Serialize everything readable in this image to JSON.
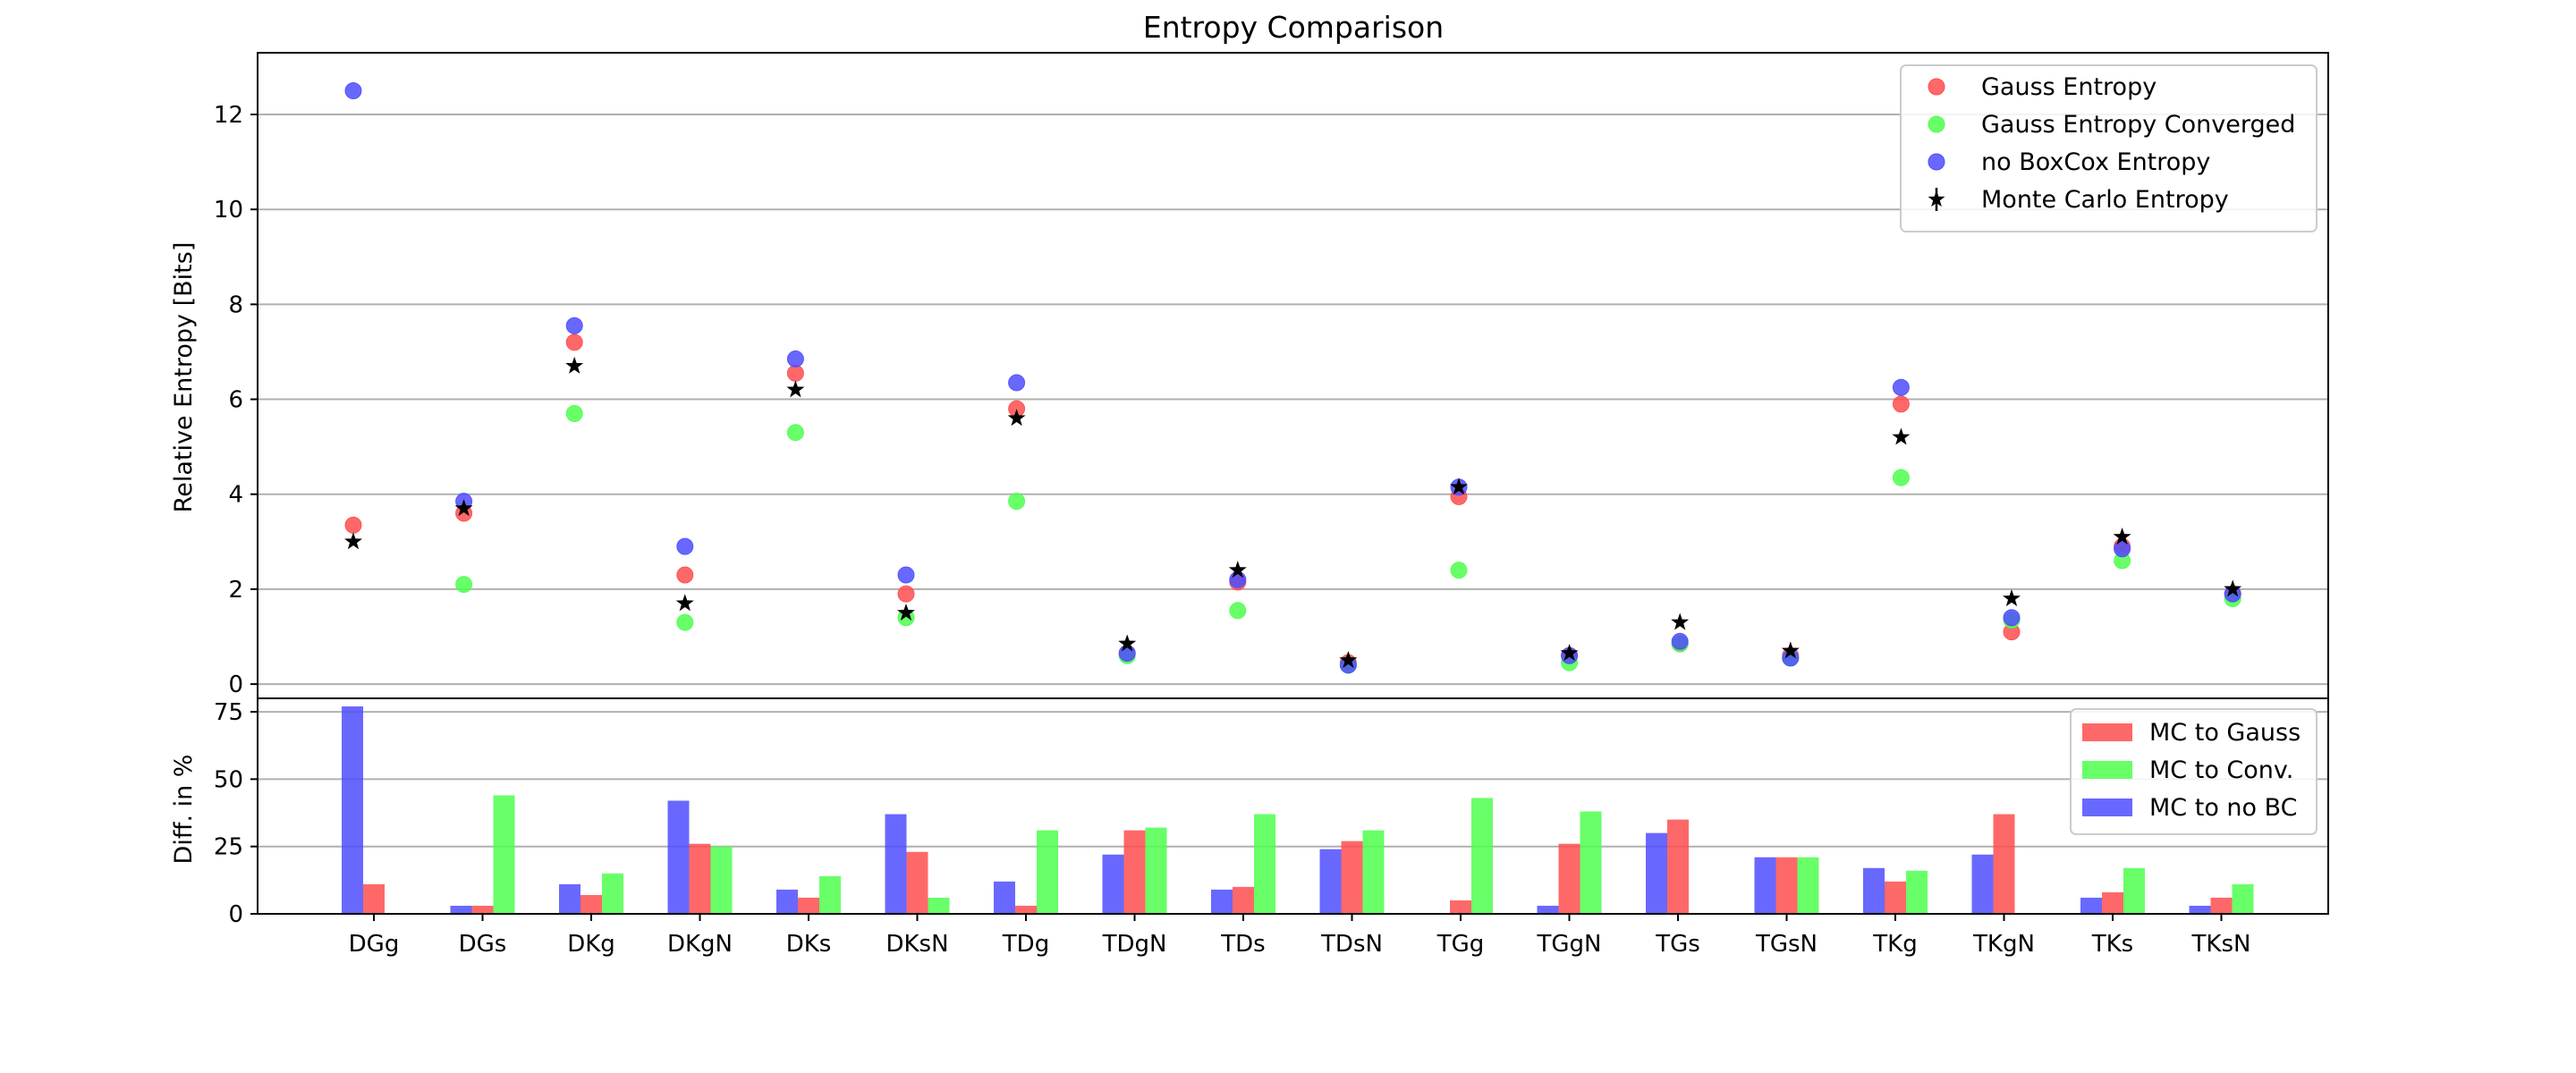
{
  "chart_data": [
    {
      "type": "scatter",
      "title": "Entropy Comparison",
      "xlabel": "",
      "ylabel": "Relative Entropy [Bits]",
      "ylim": [
        -0.3,
        13.3
      ],
      "yticks": [
        0,
        2,
        4,
        6,
        8,
        10,
        12
      ],
      "grid": "horizontal",
      "legend_position": "top-right",
      "categories": [
        "DGg",
        "DGs",
        "DKg",
        "DKgN",
        "DKs",
        "DKsN",
        "TDg",
        "TDgN",
        "TDs",
        "TDsN",
        "TGg",
        "TGgN",
        "TGs",
        "TGsN",
        "TKg",
        "TKgN",
        "TKs",
        "TKsN"
      ],
      "series": [
        {
          "name": "Gauss Entropy",
          "marker": "circle",
          "color": "#ff4d4d",
          "values": [
            3.35,
            3.6,
            7.2,
            2.3,
            6.55,
            1.9,
            5.8,
            0.65,
            2.15,
            0.45,
            3.95,
            0.6,
            0.85,
            0.6,
            5.9,
            1.1,
            2.9,
            1.9
          ]
        },
        {
          "name": "Gauss Entropy Converged",
          "marker": "circle",
          "color": "#4dff4d",
          "values": [
            null,
            2.1,
            5.7,
            1.3,
            5.3,
            1.4,
            3.85,
            0.6,
            1.55,
            0.4,
            2.4,
            0.45,
            0.85,
            0.55,
            4.35,
            1.35,
            2.6,
            1.8
          ]
        },
        {
          "name": "no BoxCox Entropy",
          "marker": "circle",
          "color": "#4d4dff",
          "values": [
            12.5,
            3.85,
            7.55,
            2.9,
            6.85,
            2.3,
            6.35,
            0.65,
            2.2,
            0.4,
            4.15,
            0.6,
            0.9,
            0.55,
            6.25,
            1.4,
            2.85,
            1.9
          ]
        },
        {
          "name": "Monte Carlo Entropy",
          "marker": "star",
          "color": "#000000",
          "values": [
            3.0,
            3.7,
            6.7,
            1.7,
            6.2,
            1.5,
            5.6,
            0.85,
            2.4,
            0.5,
            4.15,
            0.65,
            1.3,
            0.7,
            5.2,
            1.8,
            3.1,
            2.0
          ]
        }
      ]
    },
    {
      "type": "bar",
      "title": "",
      "xlabel": "",
      "ylabel": "Diff. in %",
      "ylim": [
        0,
        80
      ],
      "yticks": [
        0,
        25,
        50,
        75
      ],
      "grid": "horizontal",
      "legend_position": "top-right",
      "categories": [
        "DGg",
        "DGs",
        "DKg",
        "DKgN",
        "DKs",
        "DKsN",
        "TDg",
        "TDgN",
        "TDs",
        "TDsN",
        "TGg",
        "TGgN",
        "TGs",
        "TGsN",
        "TKg",
        "TKgN",
        "TKs",
        "TKsN"
      ],
      "series": [
        {
          "name": "MC to Gauss",
          "color": "#ff4d4d",
          "values": [
            11,
            3,
            7,
            26,
            6,
            23,
            3,
            31,
            10,
            27,
            5,
            26,
            35,
            21,
            12,
            37,
            8,
            6
          ]
        },
        {
          "name": "MC to Conv.",
          "color": "#4dff4d",
          "values": [
            0,
            44,
            15,
            25,
            14,
            6,
            31,
            32,
            37,
            31,
            43,
            38,
            0,
            21,
            16,
            0,
            17,
            11
          ]
        },
        {
          "name": "MC to no BC",
          "color": "#4d4dff",
          "values": [
            77,
            3,
            11,
            42,
            9,
            37,
            12,
            22,
            9,
            24,
            0,
            3,
            30,
            21,
            17,
            22,
            6,
            3
          ]
        }
      ]
    }
  ]
}
